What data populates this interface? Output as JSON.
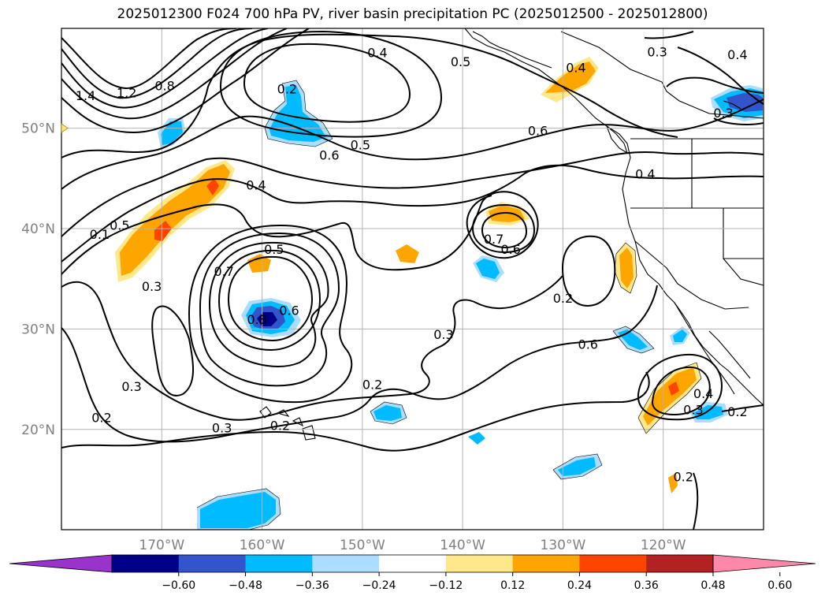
{
  "title": "2025012300 F024 700 hPa PV, river basin precipitation PC (2025012500 - 2025012800)",
  "map": {
    "lon_range": [
      -180,
      -110
    ],
    "lat_range": [
      10,
      60
    ],
    "lat_labels": [
      "50°N",
      "40°N",
      "30°N",
      "20°N"
    ],
    "lon_labels": [
      "170°W",
      "160°W",
      "150°W",
      "140°W",
      "130°W",
      "120°W"
    ],
    "gridlines": true
  },
  "contour_labels": [
    {
      "text": "0.4",
      "lon": -148.5,
      "lat": 57.6
    },
    {
      "text": "0.5",
      "lon": -140.2,
      "lat": 56.7
    },
    {
      "text": "0.3",
      "lon": -120.6,
      "lat": 57.7
    },
    {
      "text": "0.4",
      "lon": -112.6,
      "lat": 57.4
    },
    {
      "text": "0.2",
      "lon": -157.5,
      "lat": 54.0
    },
    {
      "text": "0.4",
      "lon": -128.7,
      "lat": 56.1
    },
    {
      "text": "0.3",
      "lon": -114.0,
      "lat": 51.6
    },
    {
      "text": "0.6",
      "lon": -132.5,
      "lat": 49.8
    },
    {
      "text": "0.5",
      "lon": -150.2,
      "lat": 48.4
    },
    {
      "text": "0.6",
      "lon": -153.3,
      "lat": 47.4
    },
    {
      "text": "0.4",
      "lon": -121.8,
      "lat": 45.5
    },
    {
      "text": "0.4",
      "lon": -160.6,
      "lat": 44.4
    },
    {
      "text": "1.4",
      "lon": -177.6,
      "lat": 53.3
    },
    {
      "text": "1.2",
      "lon": -173.5,
      "lat": 53.6
    },
    {
      "text": "0.8",
      "lon": -169.7,
      "lat": 54.3
    },
    {
      "text": "0.1",
      "lon": -176.2,
      "lat": 39.5
    },
    {
      "text": "0.5",
      "lon": -174.2,
      "lat": 40.4
    },
    {
      "text": "0.3",
      "lon": -171.0,
      "lat": 34.3
    },
    {
      "text": "0.5",
      "lon": -158.8,
      "lat": 38.0
    },
    {
      "text": "0.7",
      "lon": -163.8,
      "lat": 35.8
    },
    {
      "text": "0.8",
      "lon": -160.5,
      "lat": 31.0
    },
    {
      "text": "0.6",
      "lon": -157.3,
      "lat": 31.9
    },
    {
      "text": "0.7",
      "lon": -136.9,
      "lat": 39.0
    },
    {
      "text": "0.6",
      "lon": -135.2,
      "lat": 38.0
    },
    {
      "text": "0.2",
      "lon": -130.0,
      "lat": 33.1
    },
    {
      "text": "0.3",
      "lon": -141.9,
      "lat": 29.5
    },
    {
      "text": "0.3",
      "lon": -173.0,
      "lat": 24.3
    },
    {
      "text": "0.2",
      "lon": -149.0,
      "lat": 24.5
    },
    {
      "text": "0.2",
      "lon": -176.0,
      "lat": 21.2
    },
    {
      "text": "0.3",
      "lon": -164.0,
      "lat": 20.2
    },
    {
      "text": "0.2",
      "lon": -158.2,
      "lat": 20.4
    },
    {
      "text": "0.4",
      "lon": -116.0,
      "lat": 23.6
    },
    {
      "text": "0.3",
      "lon": -117.0,
      "lat": 22.0
    },
    {
      "text": "0.2",
      "lon": -112.6,
      "lat": 21.8
    },
    {
      "text": "0.2",
      "lon": -118.0,
      "lat": 15.3
    },
    {
      "text": "0.6",
      "lon": -127.5,
      "lat": 28.5
    }
  ],
  "colorbar": {
    "colors": [
      "#9933cc",
      "#000088",
      "#3355cc",
      "#00bbff",
      "#aaddff",
      "#ffffff",
      "#ffe88a",
      "#ffa500",
      "#ff4400",
      "#b22222",
      "#ff88aa"
    ],
    "labels": [
      "−0.60",
      "−0.48",
      "−0.36",
      "−0.24",
      "−0.12",
      "0.12",
      "0.24",
      "0.36",
      "0.48",
      "0.60"
    ]
  }
}
